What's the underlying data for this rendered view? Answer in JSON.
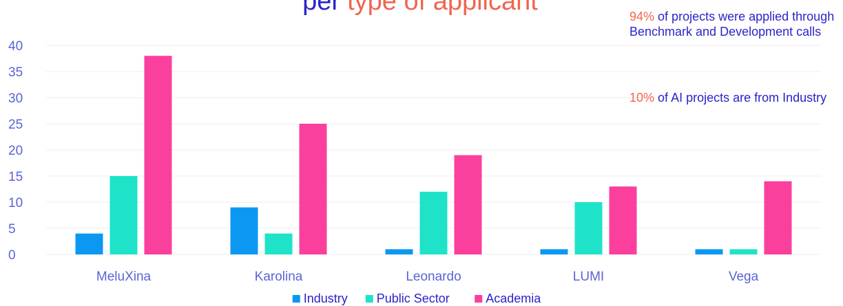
{
  "chart_data": {
    "type": "bar",
    "title": {
      "lead": "per",
      "rest": "type of applicant"
    },
    "annotations": [
      {
        "highlight": "94%",
        "text": "of projects were applied through Benchmark and Development calls"
      },
      {
        "highlight": "10%",
        "text": "of AI projects are from Industry"
      }
    ],
    "categories": [
      "MeluXina",
      "Karolina",
      "Leonardo",
      "LUMI",
      "Vega"
    ],
    "series": [
      {
        "name": "Industry",
        "color": "#0c98f2",
        "values": [
          4,
          9,
          1,
          1,
          1
        ]
      },
      {
        "name": "Public Sector",
        "color": "#1ee3c9",
        "values": [
          15,
          4,
          12,
          10,
          1
        ]
      },
      {
        "name": "Academia",
        "color": "#fb3f9d",
        "values": [
          38,
          25,
          19,
          13,
          14
        ]
      }
    ],
    "ylim": [
      0,
      40
    ],
    "yticks": [
      0,
      5,
      10,
      15,
      20,
      25,
      30,
      35,
      40
    ],
    "grid": true,
    "legend": "bottom"
  }
}
